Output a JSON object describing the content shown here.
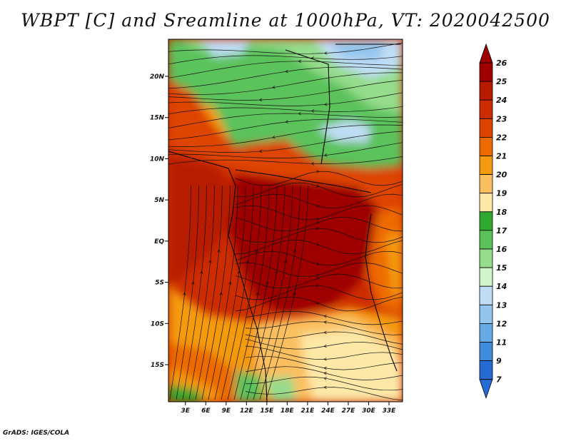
{
  "title": "WBPT [C] and Sreamline at 1000hPa, VT: 2020042500",
  "credit": "GrADS: IGES/COLA",
  "map": {
    "lat_ticks": [
      "20N",
      "15N",
      "10N",
      "5N",
      "EQ",
      "5S",
      "10S",
      "15S"
    ],
    "lon_ticks": [
      "3E",
      "6E",
      "9E",
      "12E",
      "15E",
      "18E",
      "21E",
      "24E",
      "27E",
      "30E",
      "33E"
    ],
    "lat_values": [
      20,
      15,
      10,
      5,
      0,
      -5,
      -10,
      -15
    ],
    "lon_values": [
      3,
      6,
      9,
      12,
      15,
      18,
      21,
      24,
      27,
      30,
      33
    ],
    "extent": {
      "lon_min": 0.5,
      "lon_max": 35,
      "lat_min": -19.5,
      "lat_max": 24.5
    }
  },
  "colorbar": {
    "labels": [
      "26",
      "25",
      "24",
      "23",
      "22",
      "21",
      "20",
      "19",
      "18",
      "17",
      "16",
      "15",
      "14",
      "13",
      "12",
      "11",
      "9",
      "7"
    ],
    "colors": [
      "#9e0000",
      "#b81a00",
      "#cc2c00",
      "#de4400",
      "#ec6a00",
      "#f49a10",
      "#fac060",
      "#fde8a8",
      "#2fa82f",
      "#5bc25b",
      "#95dc8c",
      "#d2f5cd",
      "#c0ddf5",
      "#93c5ee",
      "#66aae6",
      "#3f8cdc",
      "#246bd2"
    ]
  }
}
